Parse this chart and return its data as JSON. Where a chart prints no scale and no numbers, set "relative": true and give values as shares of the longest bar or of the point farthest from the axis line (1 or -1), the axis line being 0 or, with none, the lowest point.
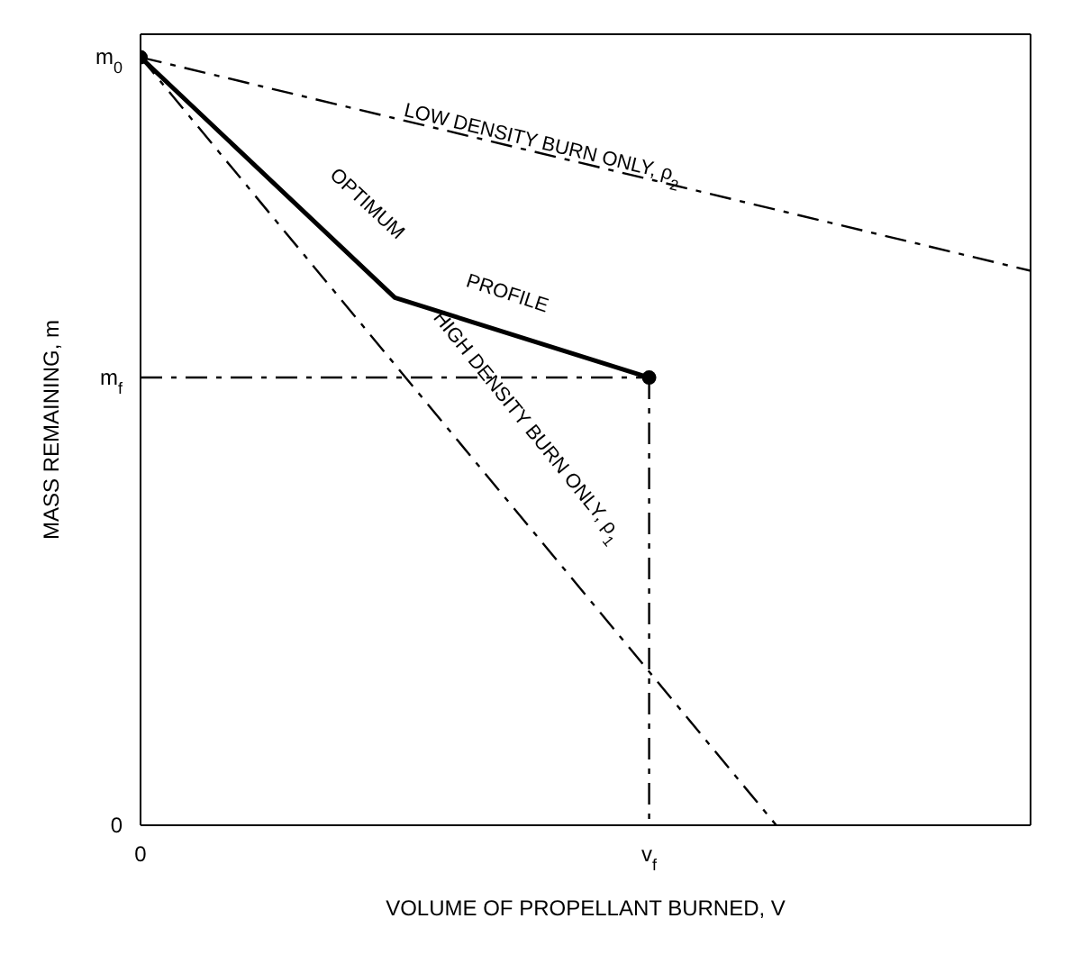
{
  "chart_data": {
    "type": "line",
    "relative": true,
    "xlabel": "VOLUME OF PROPELLANT BURNED, V",
    "ylabel": "MASS REMAINING, m",
    "categories": [
      "0",
      null,
      null,
      null,
      "v$_{f}$",
      null,
      null,
      null
    ],
    "series": [
      {
        "color": "#000000",
        "line_style": "dashed",
        "values": [
          1,
          null,
          null,
          null,
          null,
          null,
          null,
          0.722
        ]
      },
      {
        "color": "#000000",
        "line_style": "dashed",
        "values": [
          1,
          null,
          null,
          null,
          null,
          0,
          null,
          null
        ]
      },
      {
        "color": "#000000",
        "line_style": "dashed",
        "values": [
          0.583,
          null,
          null,
          null,
          0.583,
          null,
          null,
          null
        ]
      },
      {
        "color": "#000000",
        "line_style": "dashed",
        "x": [
          "v$_{f}$",
          "v$_{f}$"
        ],
        "values": [
          0.583,
          0
        ]
      },
      {
        "color": "#000000",
        "line_style": "solid",
        "values": [
          1,
          null,
          0.687,
          null,
          0.583,
          null,
          null,
          null
        ]
      },
      {
        "type": "scatter",
        "color": "#000000",
        "marker": "circle",
        "x": [
          "0",
          "v$_{f}$"
        ],
        "values": [
          1,
          0.583
        ]
      }
    ],
    "annotations": [
      "LOW DENSITY BURN ONLY, ρ$_{2}$",
      "OPTIMUM",
      "PROFILE",
      "HIGH DENSITY BURN ONLY, ρ$_{1}$",
      "m$_{0}$",
      "m$_{f}$",
      "0"
    ]
  }
}
